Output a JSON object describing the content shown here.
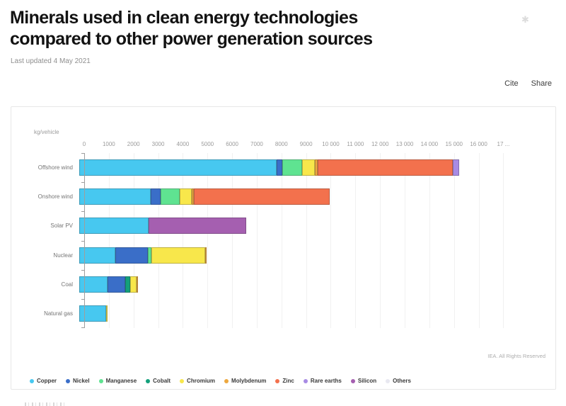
{
  "header": {
    "title": "Minerals used in clean energy technologies compared to other power generation sources",
    "last_updated": "Last updated 4 May 2021",
    "cite_label": "Cite",
    "share_label": "Share",
    "spinner_icon": "✱"
  },
  "chart": {
    "unit_label": "kg/vehicle",
    "attribution": "IEA. All Rights Reserved"
  },
  "chart_data": {
    "type": "bar",
    "stacked": true,
    "orientation": "horizontal",
    "title": "Minerals used in clean energy technologies compared to other power generation sources",
    "xlabel": "kg/vehicle",
    "grid": true,
    "legend_position": "bottom",
    "x_max": 17590,
    "tick_interval": 1000,
    "x_ticks": [
      "0",
      "1000",
      "2000",
      "3000",
      "4000",
      "5000",
      "6000",
      "7000",
      "8000",
      "9000",
      "10 000",
      "11 000",
      "12 000",
      "13 000",
      "14 000",
      "15 000",
      "16 000",
      "17 ..."
    ],
    "categories": [
      "Offshore wind",
      "Onshore wind",
      "Solar PV",
      "Nuclear",
      "Coal",
      "Natural gas"
    ],
    "series": [
      {
        "name": "Copper",
        "color": "#47C8F0",
        "values": [
          8000,
          2900,
          2822,
          1473,
          1150,
          1100
        ]
      },
      {
        "name": "Nickel",
        "color": "#3A6EC8",
        "values": [
          240,
          404,
          0,
          1297,
          721,
          0
        ]
      },
      {
        "name": "Manganese",
        "color": "#5FE391",
        "values": [
          790,
          780,
          0,
          148,
          0,
          0
        ]
      },
      {
        "name": "Cobalt",
        "color": "#13A07B",
        "values": [
          0,
          0,
          0,
          0,
          201,
          0
        ]
      },
      {
        "name": "Chromium",
        "color": "#F8E74B",
        "values": [
          525,
          470,
          0,
          2190,
          254,
          48
        ]
      },
      {
        "name": "Molybdenum",
        "color": "#EDA83F",
        "values": [
          109,
          99,
          0,
          70,
          66,
          0
        ]
      },
      {
        "name": "Zinc",
        "color": "#F3714D",
        "values": [
          5500,
          5500,
          0,
          0,
          0,
          0
        ]
      },
      {
        "name": "Rare earths",
        "color": "#A88BE4",
        "values": [
          239,
          0,
          0,
          0,
          0,
          0
        ]
      },
      {
        "name": "Silicon",
        "color": "#A55FB0",
        "values": [
          0,
          0,
          3948,
          0,
          0,
          0
        ]
      },
      {
        "name": "Others",
        "color": "#E8E8F0",
        "values": [
          0,
          0,
          0,
          0,
          0,
          0
        ]
      }
    ]
  }
}
